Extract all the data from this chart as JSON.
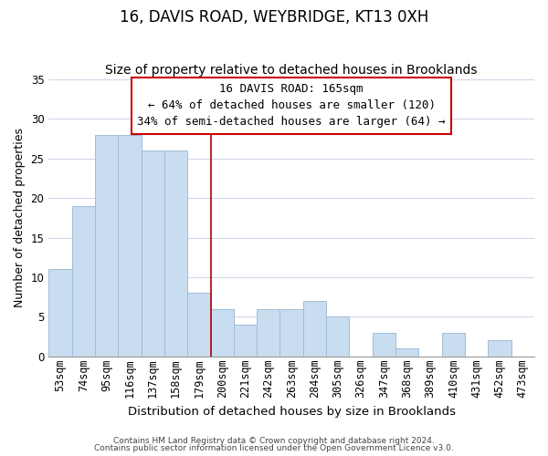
{
  "title": "16, DAVIS ROAD, WEYBRIDGE, KT13 0XH",
  "subtitle": "Size of property relative to detached houses in Brooklands",
  "xlabel": "Distribution of detached houses by size in Brooklands",
  "ylabel": "Number of detached properties",
  "bar_labels": [
    "53sqm",
    "74sqm",
    "95sqm",
    "116sqm",
    "137sqm",
    "158sqm",
    "179sqm",
    "200sqm",
    "221sqm",
    "242sqm",
    "263sqm",
    "284sqm",
    "305sqm",
    "326sqm",
    "347sqm",
    "368sqm",
    "389sqm",
    "410sqm",
    "431sqm",
    "452sqm",
    "473sqm"
  ],
  "bar_values": [
    11,
    19,
    28,
    28,
    26,
    26,
    8,
    6,
    4,
    6,
    6,
    7,
    5,
    0,
    3,
    1,
    0,
    3,
    0,
    2,
    0
  ],
  "bar_color": "#c9ddf0",
  "bar_edge_color": "#a0bcd8",
  "vline_x": 6.5,
  "vline_color": "#aa0000",
  "annotation_title": "16 DAVIS ROAD: 165sqm",
  "annotation_line1": "← 64% of detached houses are smaller (120)",
  "annotation_line2": "34% of semi-detached houses are larger (64) →",
  "annotation_box_color": "#ffffff",
  "annotation_box_edge": "#cc0000",
  "ylim": [
    0,
    35
  ],
  "yticks": [
    0,
    5,
    10,
    15,
    20,
    25,
    30,
    35
  ],
  "footnote1": "Contains HM Land Registry data © Crown copyright and database right 2024.",
  "footnote2": "Contains public sector information licensed under the Open Government Licence v3.0.",
  "title_fontsize": 12,
  "subtitle_fontsize": 10,
  "xlabel_fontsize": 9.5,
  "ylabel_fontsize": 9,
  "tick_fontsize": 8.5,
  "annotation_fontsize": 9,
  "footnote_fontsize": 6.5
}
